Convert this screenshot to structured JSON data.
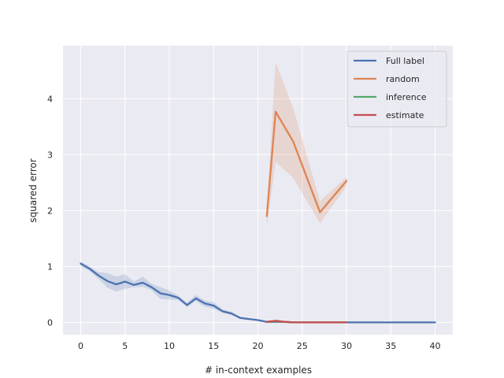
{
  "chart_data": {
    "type": "line",
    "title": "",
    "xlabel": "# in-context examples",
    "ylabel": "squared error",
    "xlim": [
      -2,
      42
    ],
    "ylim": [
      -0.22,
      4.95
    ],
    "xticks": [
      0,
      5,
      10,
      15,
      20,
      25,
      30,
      35,
      40
    ],
    "yticks": [
      0,
      1,
      2,
      3,
      4
    ],
    "grid": true,
    "background": "#eaeaf2",
    "legend_position": "top-right",
    "series": [
      {
        "name": "Full label",
        "color": "#4c72b0",
        "x": [
          0,
          1,
          2,
          3,
          4,
          5,
          6,
          7,
          8,
          9,
          10,
          11,
          12,
          13,
          14,
          15,
          16,
          17,
          18,
          19,
          20,
          21,
          22,
          23,
          24,
          25,
          26,
          27,
          28,
          29,
          30,
          31,
          32,
          33,
          34,
          35,
          36,
          37,
          38,
          39,
          40
        ],
        "y": [
          1.05,
          0.96,
          0.84,
          0.74,
          0.68,
          0.73,
          0.67,
          0.71,
          0.63,
          0.52,
          0.49,
          0.44,
          0.31,
          0.43,
          0.34,
          0.3,
          0.2,
          0.16,
          0.08,
          0.06,
          0.04,
          0.01,
          0.01,
          0.01,
          0.0,
          0.0,
          0.0,
          0.0,
          0.0,
          0.0,
          0.0,
          0.0,
          0.0,
          0.0,
          0.0,
          0.0,
          0.0,
          0.0,
          0.0,
          0.0,
          0.0
        ],
        "lower": [
          1.0,
          0.92,
          0.78,
          0.62,
          0.55,
          0.6,
          0.63,
          0.64,
          0.58,
          0.42,
          0.41,
          0.4,
          0.28,
          0.38,
          0.28,
          0.24,
          0.17,
          0.13,
          0.07,
          0.05,
          0.03,
          0.01,
          0.0,
          0.0,
          0.0,
          0.0,
          0.0,
          0.0,
          0.0,
          0.0,
          0.0,
          0.0,
          0.0,
          0.0,
          0.0,
          0.0,
          0.0,
          0.0,
          0.0,
          0.0,
          0.0
        ],
        "upper": [
          1.09,
          1.0,
          0.9,
          0.88,
          0.82,
          0.86,
          0.73,
          0.82,
          0.69,
          0.63,
          0.57,
          0.48,
          0.35,
          0.49,
          0.39,
          0.36,
          0.23,
          0.19,
          0.09,
          0.07,
          0.05,
          0.02,
          0.02,
          0.02,
          0.01,
          0.01,
          0.0,
          0.0,
          0.0,
          0.0,
          0.0,
          0.0,
          0.0,
          0.0,
          0.0,
          0.0,
          0.0,
          0.0,
          0.0,
          0.0,
          0.0
        ]
      },
      {
        "name": "random",
        "color": "#dd8452",
        "x": [
          21,
          22,
          24,
          27,
          30
        ],
        "y": [
          1.9,
          3.77,
          3.23,
          1.97,
          2.53
        ],
        "lower": [
          1.72,
          2.87,
          2.58,
          1.77,
          2.44
        ],
        "upper": [
          2.02,
          4.65,
          3.82,
          2.17,
          2.6
        ]
      },
      {
        "name": "inference",
        "color": "#55a868",
        "x": [
          21,
          22,
          23,
          24,
          25,
          26,
          27,
          28,
          29,
          30
        ],
        "y": [
          0.01,
          0.02,
          0.01,
          0.0,
          0.0,
          0.0,
          0.0,
          0.0,
          0.0,
          0.0
        ]
      },
      {
        "name": "estimate",
        "color": "#c44e52",
        "x": [
          21,
          22,
          23,
          24,
          25,
          26,
          27,
          28,
          29,
          30
        ],
        "y": [
          0.01,
          0.03,
          0.01,
          0.0,
          0.0,
          0.0,
          0.0,
          0.0,
          0.0,
          0.0
        ]
      }
    ]
  }
}
